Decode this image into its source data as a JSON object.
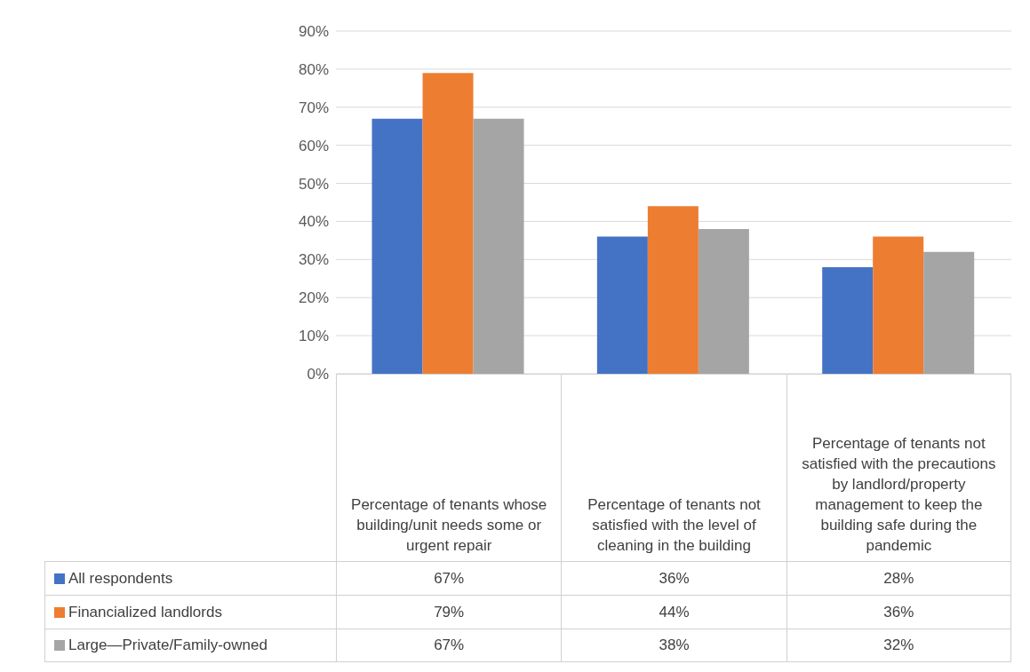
{
  "chart_data": {
    "type": "bar",
    "categories": [
      "Percentage of tenants whose building/unit needs some or urgent repair",
      "Percentage of tenants not satisfied with the level of cleaning in the building",
      "Percentage of tenants not satisfied with the precautions by landlord/property management to keep the building safe during the pandemic"
    ],
    "series": [
      {
        "name": "All respondents",
        "color": "#4472c4",
        "values": [
          67,
          36,
          28
        ],
        "value_labels": [
          "67%",
          "36%",
          "28%"
        ]
      },
      {
        "name": "Financialized landlords",
        "color": "#ed7d31",
        "values": [
          79,
          44,
          36
        ],
        "value_labels": [
          "79%",
          "44%",
          "36%"
        ]
      },
      {
        "name": "Large—Private/Family-owned",
        "color": "#a5a5a5",
        "values": [
          67,
          38,
          32
        ],
        "value_labels": [
          "67%",
          "38%",
          "32%"
        ]
      }
    ],
    "ylim": [
      0,
      90
    ],
    "yticks": [
      {
        "value": 0,
        "label": "0%"
      },
      {
        "value": 10,
        "label": "10%"
      },
      {
        "value": 20,
        "label": "20%"
      },
      {
        "value": 30,
        "label": "30%"
      },
      {
        "value": 40,
        "label": "40%"
      },
      {
        "value": 50,
        "label": "50%"
      },
      {
        "value": 60,
        "label": "60%"
      },
      {
        "value": 70,
        "label": "70%"
      },
      {
        "value": 80,
        "label": "80%"
      },
      {
        "value": 90,
        "label": "90%"
      }
    ],
    "grid": "y",
    "legend": "bottom"
  }
}
